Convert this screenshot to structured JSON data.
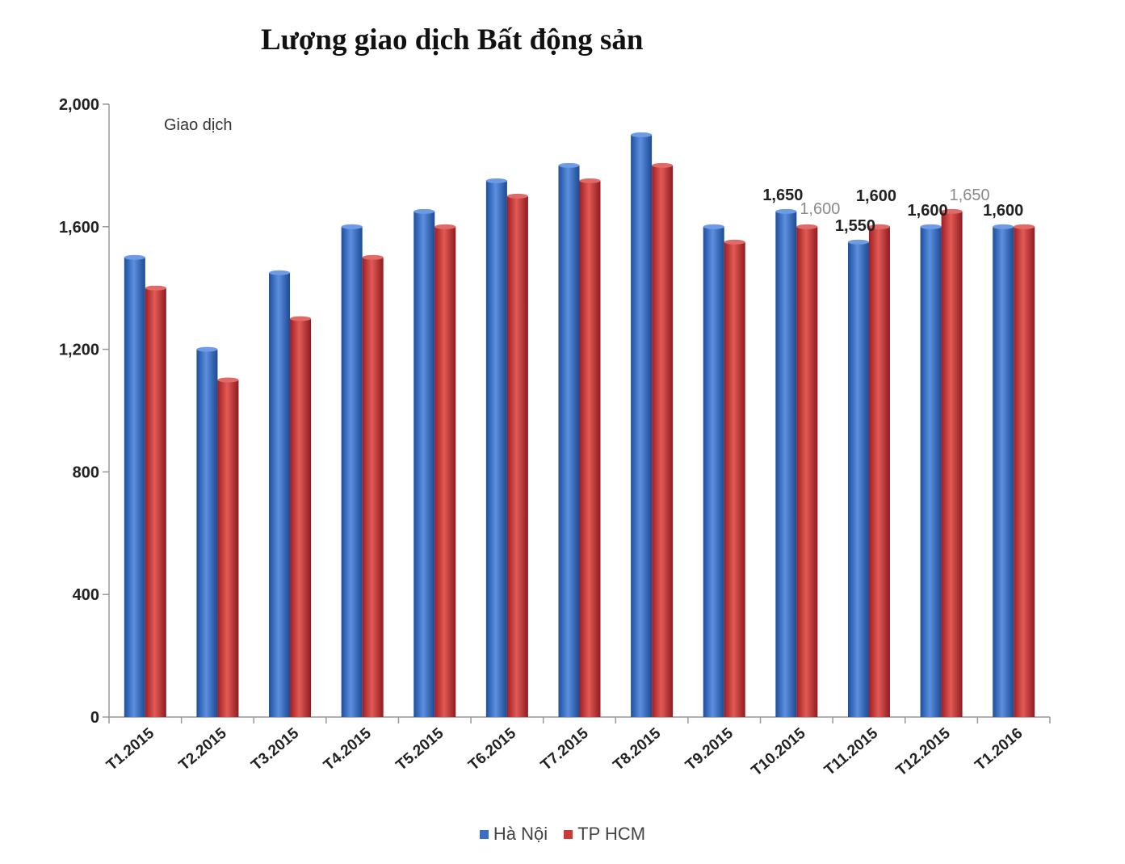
{
  "chart_data": {
    "type": "bar",
    "title": "Lượng giao dịch Bất động sản",
    "unit_label": "Giao dịch",
    "categories": [
      "T1.2015",
      "T2.2015",
      "T3.2015",
      "T4.2015",
      "T5.2015",
      "T6.2015",
      "T7.2015",
      "T8.2015",
      "T9.2015",
      "T10.2015",
      "T11.2015",
      "T12.2015",
      "T1.2016"
    ],
    "series": [
      {
        "name": "Hà Nội",
        "color": "#3a6fc4",
        "values": [
          1500,
          1200,
          1450,
          1600,
          1650,
          1750,
          1800,
          1900,
          1600,
          1650,
          1550,
          1600,
          1600
        ]
      },
      {
        "name": "TP HCM",
        "color": "#c93a3a",
        "values": [
          1400,
          1100,
          1300,
          1500,
          1600,
          1700,
          1750,
          1800,
          1550,
          1600,
          1600,
          1650,
          1600
        ]
      }
    ],
    "ylim": [
      0,
      2000
    ],
    "yticks": [
      "0",
      "400",
      "800",
      "1,200",
      "1,600",
      "2,000"
    ],
    "data_labels": [
      {
        "category_index": 9,
        "series_index": 0,
        "text": "1,650",
        "style": "bold"
      },
      {
        "category_index": 9,
        "series_index": 1,
        "text": "1,600",
        "style": "light"
      },
      {
        "category_index": 10,
        "series_index": 0,
        "text": "1,550",
        "style": "bold"
      },
      {
        "category_index": 10,
        "series_index": 1,
        "text": "1,600",
        "style": "bold"
      },
      {
        "category_index": 11,
        "series_index": 0,
        "text": "1,600",
        "style": "bold"
      },
      {
        "category_index": 11,
        "series_index": 1,
        "text": "1,650",
        "style": "light"
      },
      {
        "category_index": 12,
        "series_index": 0,
        "text": "1,600",
        "style": "bold"
      }
    ],
    "grid": false,
    "legend_position": "bottom"
  }
}
